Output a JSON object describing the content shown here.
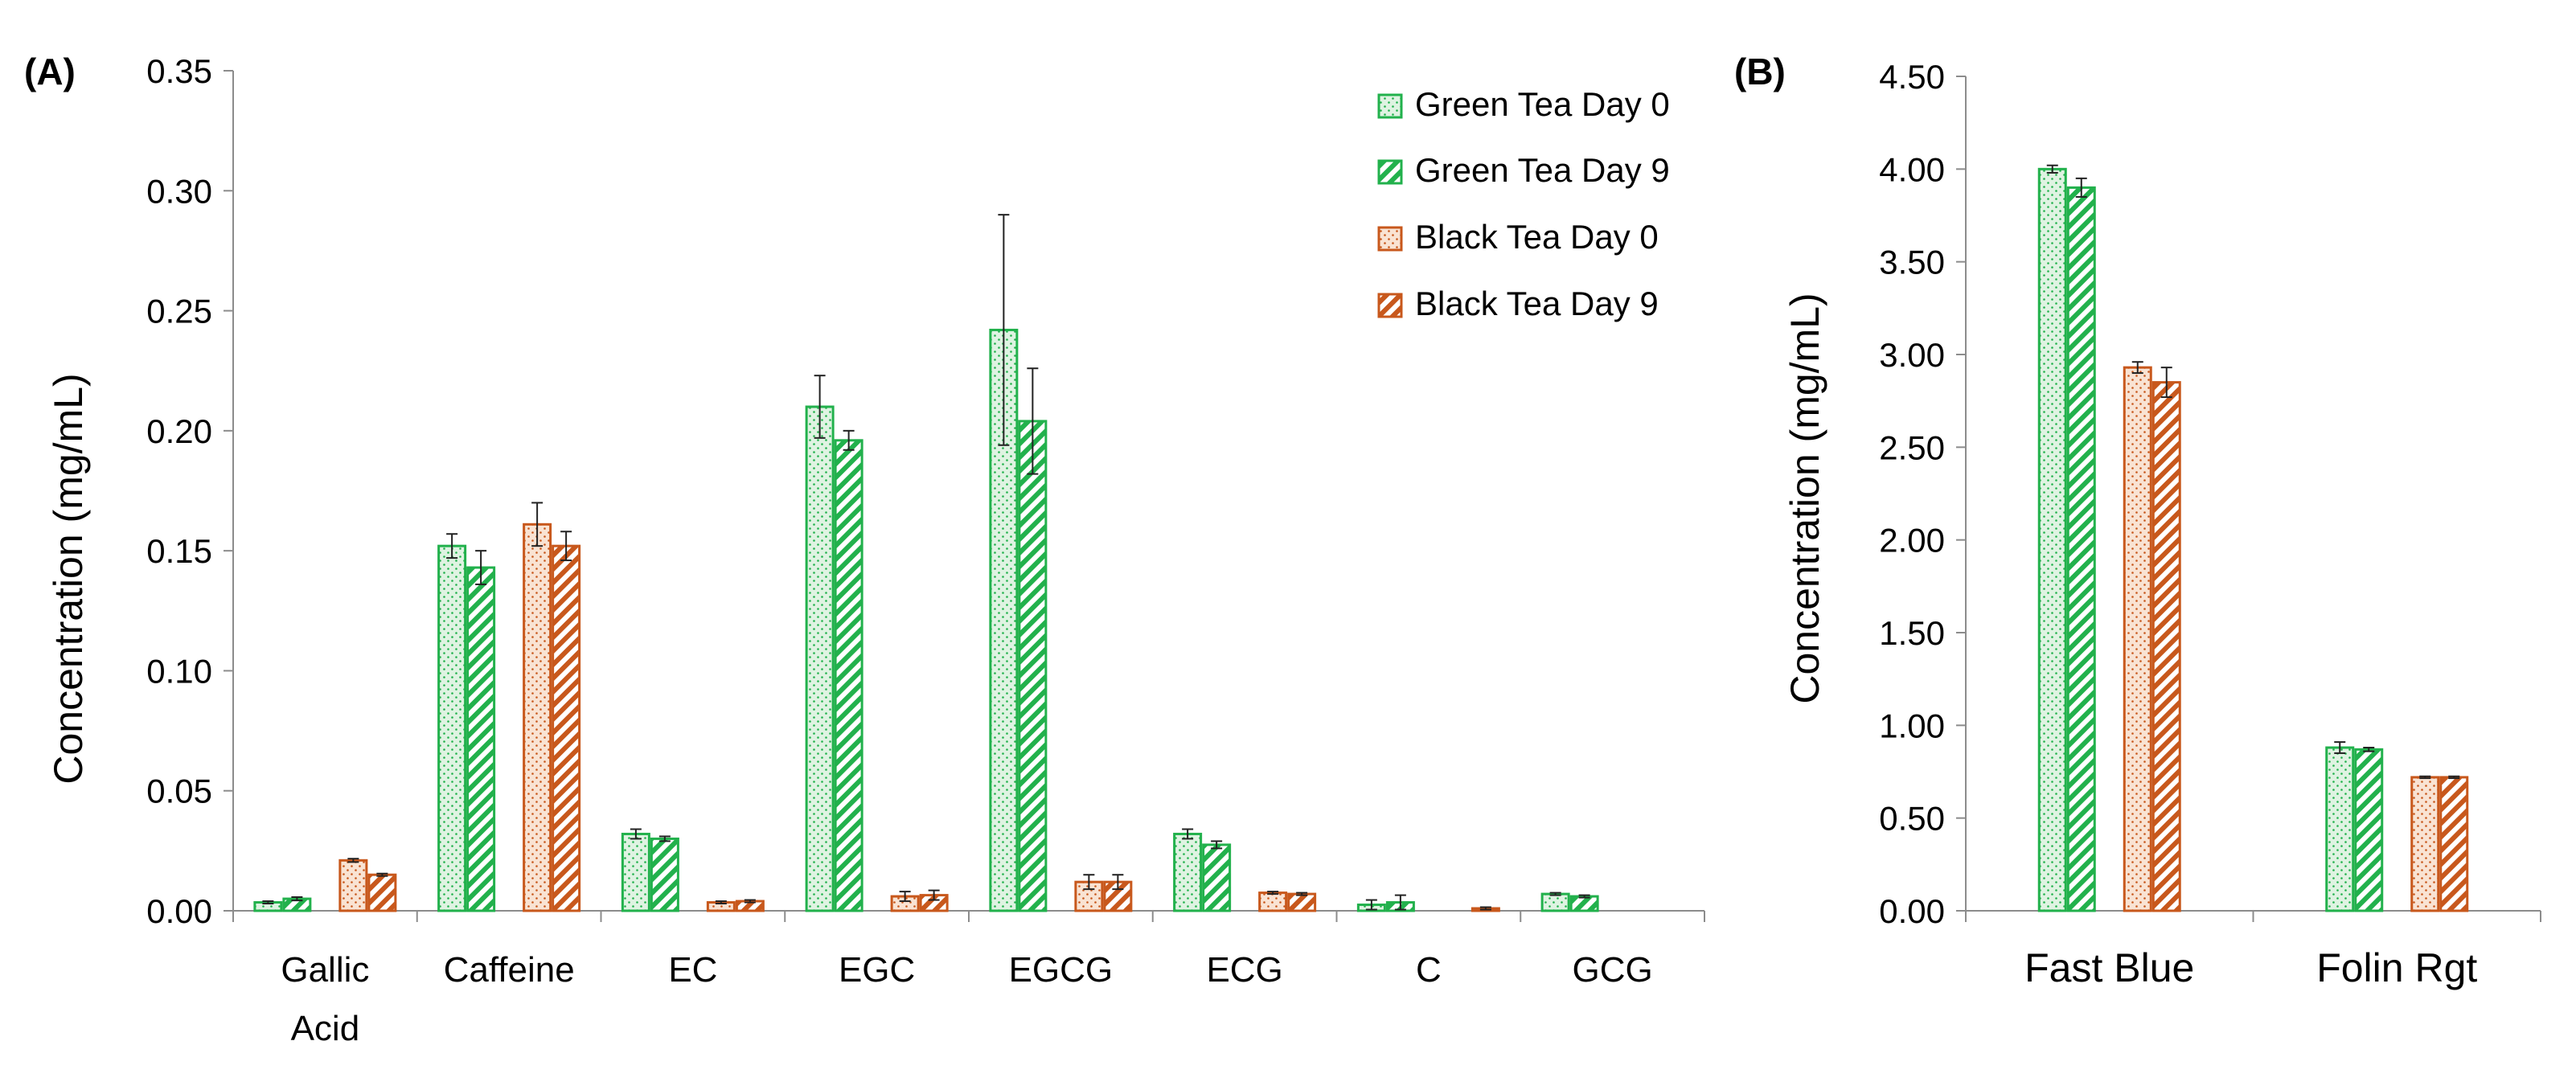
{
  "colors": {
    "green": "#22b14c",
    "green_light": "#dff3e2",
    "orange": "#c8581c",
    "orange_light": "#f9e3d3",
    "axis": "#8c8c8c",
    "error": "#222222"
  },
  "legend": {
    "items": [
      {
        "label": "Green Tea Day 0",
        "pattern": "dots",
        "color": "green"
      },
      {
        "label": "Green Tea Day 9",
        "pattern": "hatch",
        "color": "green"
      },
      {
        "label": "Black Tea Day 0",
        "pattern": "dots",
        "color": "orange"
      },
      {
        "label": "Black Tea Day 9",
        "pattern": "hatch",
        "color": "orange"
      }
    ]
  },
  "chart_data": [
    {
      "panel_label": "(A)",
      "type": "bar",
      "ylabel": "Concentration (mg/mL)",
      "ylim": [
        0,
        0.35
      ],
      "yticks": [
        0,
        0.05,
        0.1,
        0.15,
        0.2,
        0.25,
        0.3,
        0.35
      ],
      "ytick_labels": [
        "0.00",
        "0.05",
        "0.10",
        "0.15",
        "0.20",
        "0.25",
        "0.30",
        "0.35"
      ],
      "categories": [
        [
          "Gallic",
          "Acid"
        ],
        [
          "Caffeine"
        ],
        [
          "EC"
        ],
        [
          "EGC"
        ],
        [
          "EGCG"
        ],
        [
          "ECG"
        ],
        [
          "C"
        ],
        [
          "GCG"
        ]
      ],
      "series": [
        {
          "name": "Green Tea Day 0",
          "values": [
            0.0035,
            0.152,
            0.032,
            0.21,
            0.242,
            0.032,
            0.0025,
            0.007
          ],
          "errors": [
            0.0005,
            0.005,
            0.002,
            0.013,
            0.048,
            0.002,
            0.002,
            0.0005
          ]
        },
        {
          "name": "Green Tea Day 9",
          "values": [
            0.005,
            0.143,
            0.03,
            0.196,
            0.204,
            0.0275,
            0.0035,
            0.006
          ],
          "errors": [
            0.0007,
            0.007,
            0.001,
            0.004,
            0.022,
            0.0015,
            0.003,
            0.0005
          ]
        },
        {
          "name": "Black Tea Day 0",
          "values": [
            0.021,
            0.161,
            0.0035,
            0.006,
            0.012,
            0.0075,
            0,
            0
          ],
          "errors": [
            0.0007,
            0.009,
            0.0005,
            0.002,
            0.003,
            0.0005,
            0,
            0
          ]
        },
        {
          "name": "Black Tea Day 9",
          "values": [
            0.015,
            0.152,
            0.004,
            0.0065,
            0.012,
            0.007,
            0.001,
            0
          ],
          "errors": [
            0.0005,
            0.006,
            0.0005,
            0.002,
            0.003,
            0.0005,
            0.0005,
            0
          ]
        }
      ]
    },
    {
      "panel_label": "(B)",
      "type": "bar",
      "ylabel": "Concentration (mg/mL)",
      "ylim": [
        0,
        4.5
      ],
      "yticks": [
        0,
        0.5,
        1.0,
        1.5,
        2.0,
        2.5,
        3.0,
        3.5,
        4.0,
        4.5
      ],
      "ytick_labels": [
        "0.00",
        "0.50",
        "1.00",
        "1.50",
        "2.00",
        "2.50",
        "3.00",
        "3.50",
        "4.00",
        "4.50"
      ],
      "categories": [
        [
          "Fast Blue"
        ],
        [
          "Folin Rgt"
        ]
      ],
      "series": [
        {
          "name": "Green Tea Day 0",
          "values": [
            4.0,
            0.88
          ],
          "errors": [
            0.02,
            0.03
          ]
        },
        {
          "name": "Green Tea Day 9",
          "values": [
            3.9,
            0.87
          ],
          "errors": [
            0.05,
            0.01
          ]
        },
        {
          "name": "Black Tea Day 0",
          "values": [
            2.93,
            0.72
          ],
          "errors": [
            0.03,
            0.005
          ]
        },
        {
          "name": "Black Tea Day 9",
          "values": [
            2.85,
            0.72
          ],
          "errors": [
            0.08,
            0.005
          ]
        }
      ]
    }
  ]
}
